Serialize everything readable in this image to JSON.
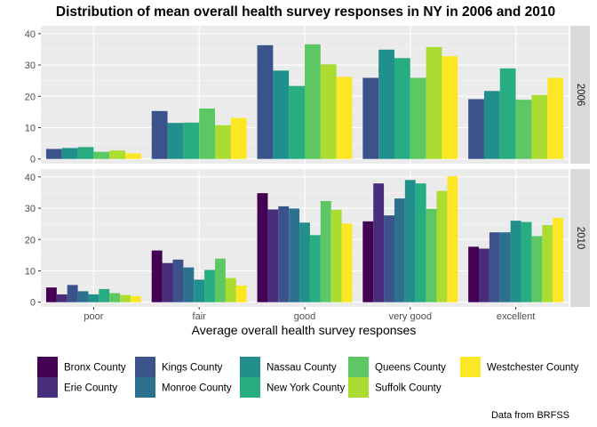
{
  "chart_data": {
    "type": "bar",
    "title": "Distribution of mean overall health survey responses in NY in 2006 and 2010",
    "xlabel": "Average overall health survey responses",
    "ylabel": "",
    "caption": "Data from BRFSS",
    "categories": [
      "poor",
      "fair",
      "good",
      "very good",
      "excellent"
    ],
    "yticks": [
      0,
      10,
      20,
      30,
      40
    ],
    "ylim": [
      -1.5,
      42.5
    ],
    "grid": true,
    "legend_position": "bottom",
    "counties": [
      {
        "name": "Bronx County",
        "color": "#440154"
      },
      {
        "name": "Erie County",
        "color": "#472D7B"
      },
      {
        "name": "Kings County",
        "color": "#3B528B"
      },
      {
        "name": "Monroe County",
        "color": "#2C728E"
      },
      {
        "name": "Nassau County",
        "color": "#21908C"
      },
      {
        "name": "New York County",
        "color": "#27AD81"
      },
      {
        "name": "Queens County",
        "color": "#5DC863"
      },
      {
        "name": "Suffolk County",
        "color": "#AADC32"
      },
      {
        "name": "Westchester County",
        "color": "#FDE725"
      }
    ],
    "panels": [
      {
        "label": "2006",
        "series": [
          {
            "county": "Kings County",
            "values": [
              3.2,
              15.3,
              36.3,
              25.9,
              19.1
            ]
          },
          {
            "county": "Nassau County",
            "values": [
              3.5,
              11.5,
              28.2,
              34.9,
              21.7
            ]
          },
          {
            "county": "New York County",
            "values": [
              3.8,
              11.6,
              23.3,
              32.2,
              28.9
            ]
          },
          {
            "county": "Queens County",
            "values": [
              2.3,
              16.1,
              36.6,
              25.9,
              18.9
            ]
          },
          {
            "county": "Suffolk County",
            "values": [
              2.7,
              10.8,
              30.2,
              35.7,
              20.4
            ]
          },
          {
            "county": "Westchester County",
            "values": [
              1.8,
              13.1,
              26.2,
              32.8,
              25.9
            ]
          }
        ]
      },
      {
        "label": "2010",
        "series": [
          {
            "county": "Bronx County",
            "values": [
              4.7,
              16.5,
              34.8,
              25.8,
              17.7
            ]
          },
          {
            "county": "Erie County",
            "values": [
              2.5,
              12.5,
              29.6,
              37.9,
              17.1
            ]
          },
          {
            "county": "Kings County",
            "values": [
              5.5,
              13.6,
              30.6,
              27.7,
              22.3
            ]
          },
          {
            "county": "Monroe County",
            "values": [
              3.5,
              11.1,
              29.9,
              33.1,
              22.3
            ]
          },
          {
            "county": "Nassau County",
            "values": [
              2.5,
              7.2,
              25.4,
              39.0,
              26.0
            ]
          },
          {
            "county": "New York County",
            "values": [
              4.2,
              10.3,
              21.4,
              37.9,
              25.6
            ]
          },
          {
            "county": "Queens County",
            "values": [
              2.9,
              13.9,
              32.3,
              29.8,
              21.1
            ]
          },
          {
            "county": "Suffolk County",
            "values": [
              2.3,
              7.7,
              29.5,
              35.5,
              24.6
            ]
          },
          {
            "county": "Westchester County",
            "values": [
              1.9,
              5.3,
              25.1,
              40.2,
              26.9
            ]
          }
        ]
      }
    ]
  }
}
